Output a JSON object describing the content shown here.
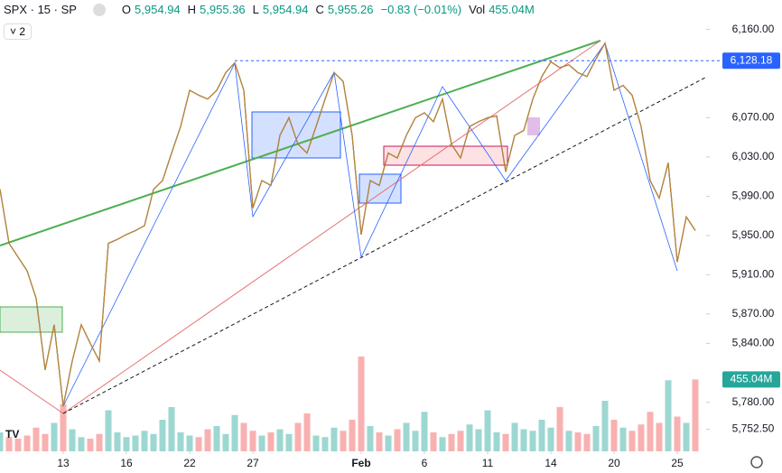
{
  "header": {
    "symbol": "SPX · 15 · SP",
    "o_label": "O",
    "open": "5,954.94",
    "h_label": "H",
    "high": "5,955.36",
    "l_label": "L",
    "low": "5,954.94",
    "c_label": "C",
    "close": "5,955.26",
    "change": "−0.83 (−0.01%)",
    "vol_label": "Vol",
    "volume": "455.04M",
    "indicators": "2"
  },
  "chart_data": {
    "type": "line",
    "x": [
      0,
      1,
      2,
      3,
      4,
      5,
      6,
      7,
      8,
      9,
      10,
      11,
      12,
      13,
      14,
      15,
      16,
      17,
      18,
      19,
      20,
      21,
      22,
      23,
      24,
      25,
      26,
      27,
      28,
      29,
      30,
      31,
      32,
      33,
      34,
      35,
      36,
      37,
      38,
      39,
      40,
      41,
      42,
      43,
      44,
      45,
      46,
      47,
      48,
      49,
      50,
      51,
      52,
      53,
      54,
      55,
      56,
      57,
      58,
      59,
      60,
      61,
      62,
      63,
      64,
      65,
      66,
      67,
      68,
      69,
      70,
      71,
      72,
      73,
      74,
      75,
      76,
      77
    ],
    "series": [
      {
        "name": "SPX",
        "color": "#e8a33a",
        "values": [
          5997,
          5942,
          5928,
          5914,
          5886,
          5813,
          5859,
          5776,
          5822,
          5859,
          5840,
          5822,
          5942,
          5946,
          5951,
          5955,
          5960,
          5997,
          6006,
          6034,
          6061,
          6098,
          6093,
          6089,
          6098,
          6116,
          6126,
          6098,
          5978,
          6006,
          6001,
          6052,
          6070,
          6043,
          6034,
          6061,
          6089,
          6116,
          6107,
          6052,
          5951,
          6006,
          6001,
          6034,
          6029,
          6052,
          6070,
          6075,
          6066,
          6089,
          6043,
          6029,
          6061,
          6066,
          6070,
          6072,
          6015,
          6052,
          6057,
          6089,
          6112,
          6127,
          6121,
          6124,
          6116,
          6112,
          6130,
          6146,
          6098,
          6103,
          6093,
          6061,
          6006,
          5988,
          6024,
          5923,
          5969,
          5955
        ]
      }
    ],
    "volume": {
      "up_color": "#26a69a",
      "down_color": "#ef5350",
      "values": [
        120,
        90,
        80,
        100,
        150,
        110,
        180,
        300,
        140,
        90,
        80,
        110,
        260,
        120,
        90,
        100,
        130,
        110,
        200,
        280,
        120,
        100,
        90,
        140,
        160,
        110,
        230,
        180,
        130,
        100,
        120,
        140,
        110,
        180,
        240,
        100,
        90,
        150,
        130,
        200,
        600,
        160,
        120,
        100,
        140,
        180,
        130,
        250,
        120,
        90,
        110,
        130,
        170,
        140,
        260,
        120,
        110,
        180,
        140,
        130,
        200,
        150,
        280,
        130,
        120,
        110,
        160,
        320,
        200,
        150,
        130,
        170,
        250,
        180,
        450,
        220,
        180,
        455.04
      ],
      "ylim": [
        0,
        800
      ],
      "last_label": "455.04M"
    },
    "xlim": [
      0,
      78
    ],
    "xticks": [
      {
        "value": 7,
        "label": "13"
      },
      {
        "value": 14,
        "label": "16"
      },
      {
        "value": 21,
        "label": "22"
      },
      {
        "value": 28,
        "label": "27"
      },
      {
        "value": 40,
        "label": "Feb"
      },
      {
        "value": 47,
        "label": "6"
      },
      {
        "value": 54,
        "label": "11"
      },
      {
        "value": 61,
        "label": "14"
      },
      {
        "value": 68,
        "label": "20"
      },
      {
        "value": 75,
        "label": "25"
      }
    ],
    "ylim": [
      5730,
      6190
    ],
    "yticks": [
      {
        "value": 6160,
        "label": "6,160.00"
      },
      {
        "value": 6070,
        "label": "6,070.00"
      },
      {
        "value": 6030,
        "label": "6,030.00"
      },
      {
        "value": 5990,
        "label": "5,990.00"
      },
      {
        "value": 5950,
        "label": "5,950.00"
      },
      {
        "value": 5910,
        "label": "5,910.00"
      },
      {
        "value": 5870,
        "label": "5,870.00"
      },
      {
        "value": 5840,
        "label": "5,840.00"
      },
      {
        "value": 5780,
        "label": "5,780.00"
      },
      {
        "value": 5752.5,
        "label": "5,752.50"
      }
    ],
    "price_line": {
      "value": 6128.18,
      "label": "6,128.18",
      "color": "#2962ff"
    }
  }
}
